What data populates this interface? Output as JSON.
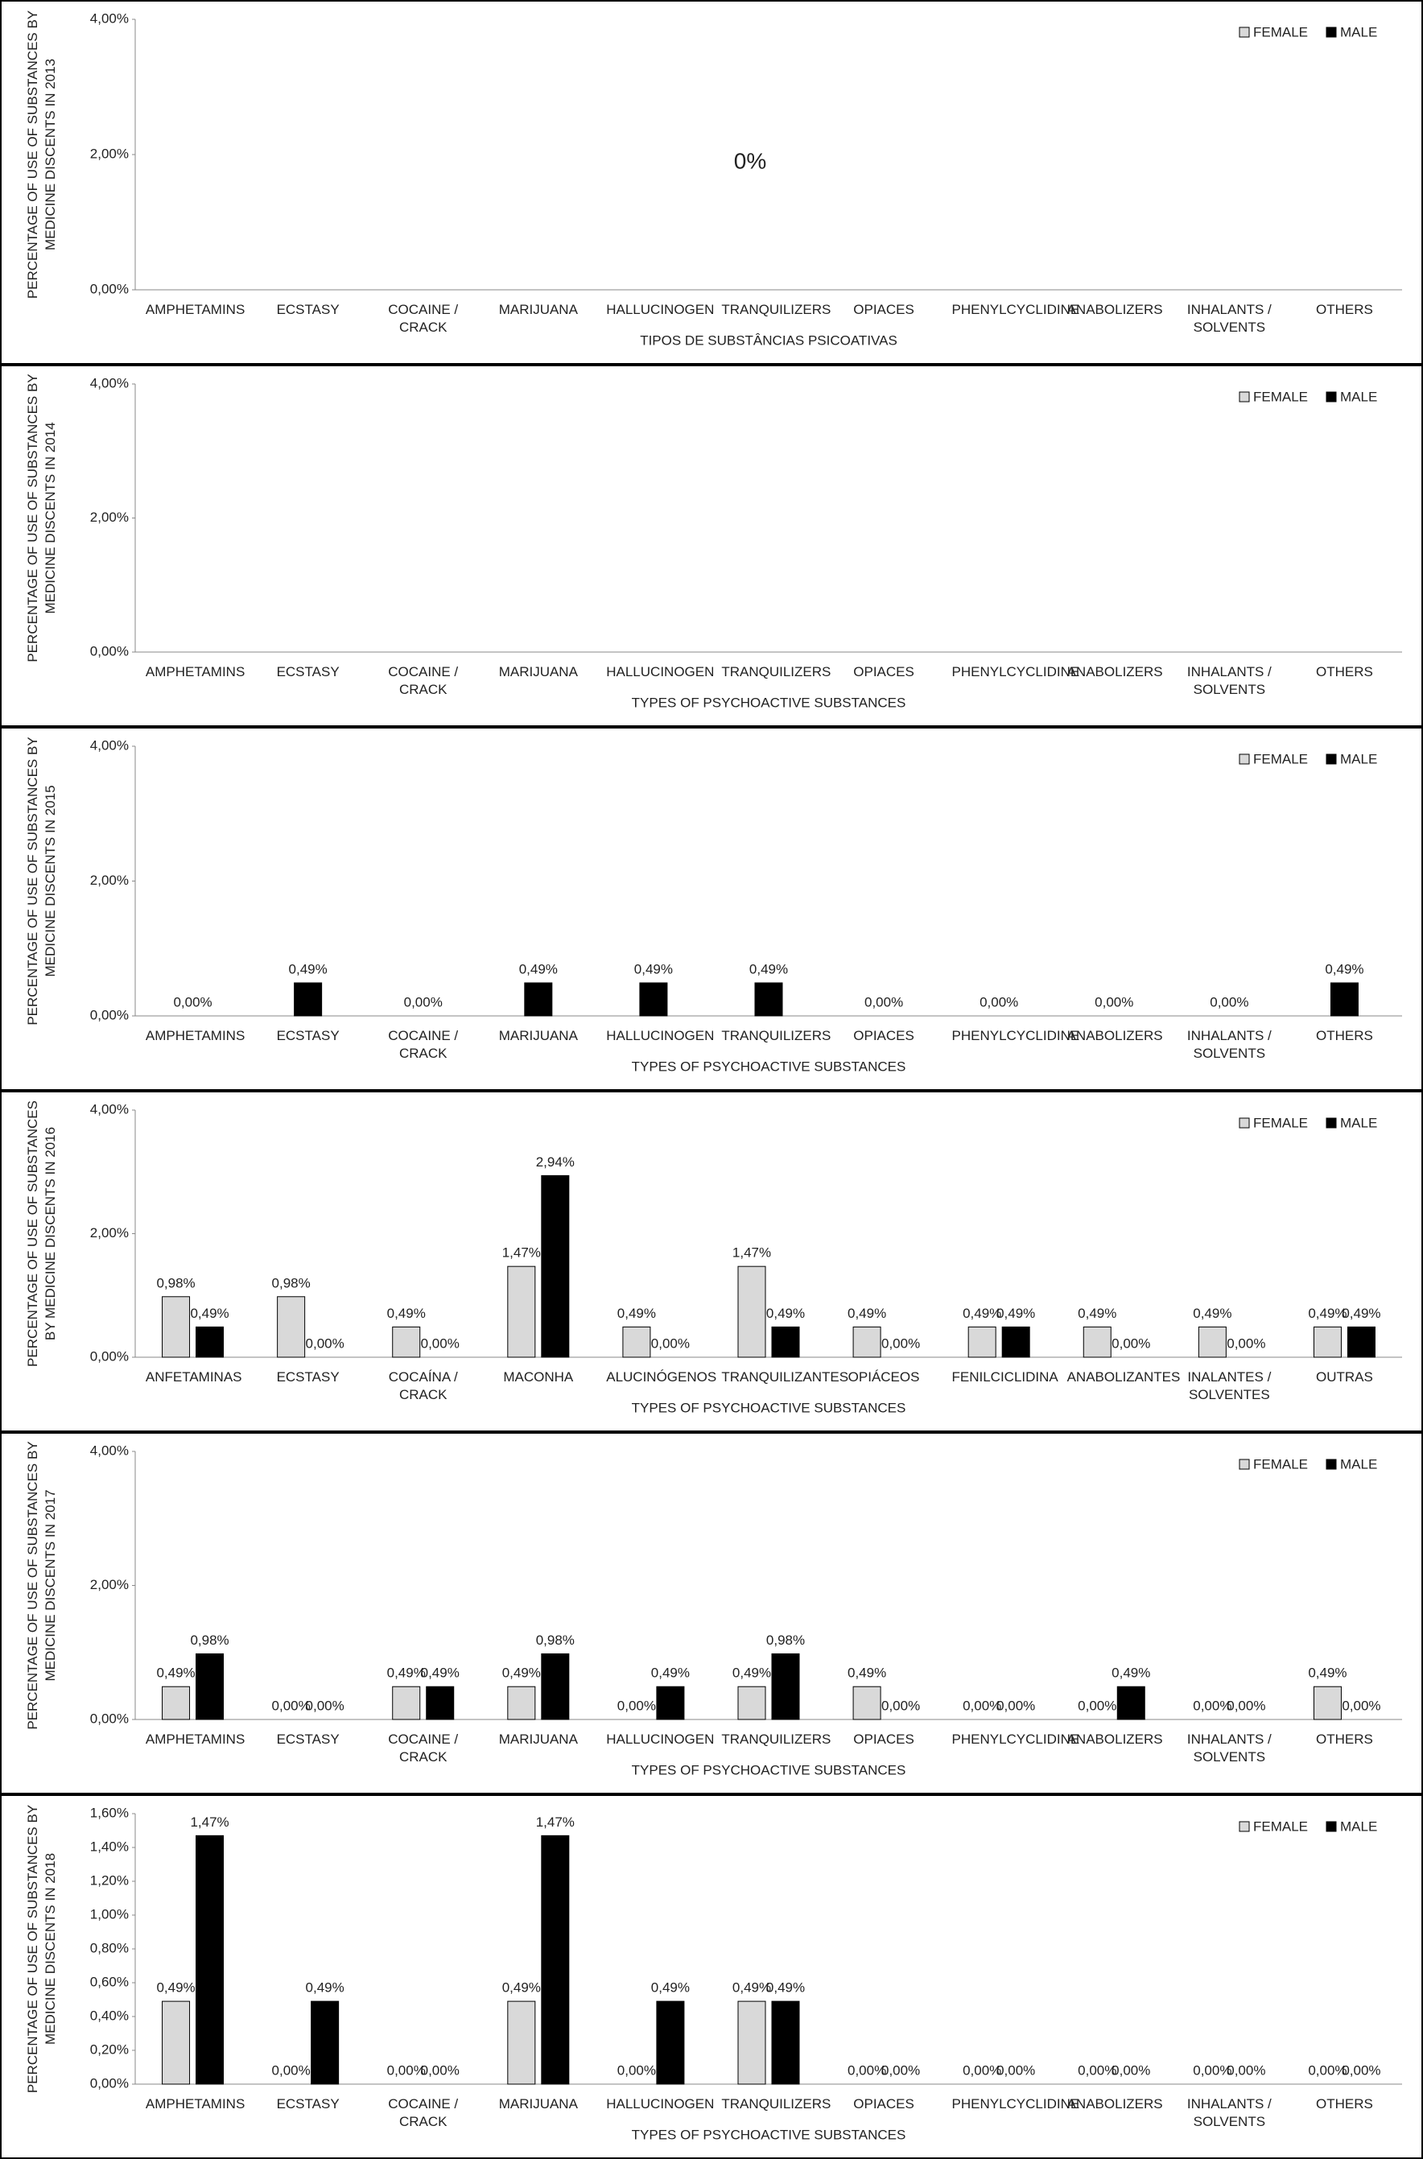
{
  "chart_data": [
    {
      "type": "bar",
      "ylabel": "PERCENTAGE OF USE OF SUBSTANCES BY MEDICINE DISCENTS IN 2013",
      "xlabel": "TIPOS DE SUBSTÂNCIAS PSICOATIVAS",
      "annotation": "0%",
      "categories": [
        "AMPHETAMINS",
        "ECSTASY",
        "COCAINE / CRACK",
        "MARIJUANA",
        "HALLUCINOGEN",
        "TRANQUILIZERS",
        "OPIACES",
        "PHENYLCYCLIDINE",
        "ANABOLIZERS",
        "INHALANTS / SOLVENTS",
        "OTHERS"
      ],
      "series": [
        {
          "name": "FEMALE",
          "color": "#d9d9d9",
          "values": [
            0,
            0,
            0,
            0,
            0,
            0,
            0,
            0,
            0,
            0,
            0
          ]
        },
        {
          "name": "MALE",
          "color": "#000000",
          "values": [
            0,
            0,
            0,
            0,
            0,
            0,
            0,
            0,
            0,
            0,
            0
          ]
        }
      ],
      "ylim": [
        0,
        4
      ],
      "yticks": [
        {
          "value": 0,
          "label": "0,00%"
        },
        {
          "value": 2,
          "label": "2,00%"
        },
        {
          "value": 4,
          "label": "4,00%"
        }
      ],
      "legend": "upper right"
    },
    {
      "type": "bar",
      "ylabel": "PERCENTAGE OF USE OF SUBSTANCES BY MEDICINE DISCENTS IN 2014",
      "xlabel": "TYPES OF PSYCHOACTIVE SUBSTANCES",
      "categories": [
        "AMPHETAMINS",
        "ECSTASY",
        "COCAINE / CRACK",
        "MARIJUANA",
        "HALLUCINOGEN",
        "TRANQUILIZERS",
        "OPIACES",
        "PHENYLCYCLIDINE",
        "ANABOLIZERS",
        "INHALANTS / SOLVENTS",
        "OTHERS"
      ],
      "series": [
        {
          "name": "FEMALE",
          "color": "#d9d9d9",
          "values": [
            0,
            0,
            0,
            0,
            0,
            0,
            0,
            0,
            0,
            0,
            0
          ]
        },
        {
          "name": "MALE",
          "color": "#000000",
          "values": [
            0,
            0,
            0,
            0,
            0,
            0,
            0,
            0,
            0,
            0,
            0
          ]
        }
      ],
      "ylim": [
        0,
        4
      ],
      "yticks": [
        {
          "value": 0,
          "label": "0,00%"
        },
        {
          "value": 2,
          "label": "2,00%"
        },
        {
          "value": 4,
          "label": "4,00%"
        }
      ],
      "legend": "upper right"
    },
    {
      "type": "bar",
      "ylabel": "PERCENTAGE OF USE OF SUBSTANCES BY MEDICINE DISCENTS IN 2015",
      "xlabel": "TYPES OF PSYCHOACTIVE SUBSTANCES",
      "categories": [
        "AMPHETAMINS",
        "ECSTASY",
        "COCAINE / CRACK",
        "MARIJUANA",
        "HALLUCINOGEN",
        "TRANQUILIZERS",
        "OPIACES",
        "PHENYLCYCLIDINE",
        "ANABOLIZERS",
        "INHALANTS / SOLVENTS",
        "OTHERS"
      ],
      "series": [
        {
          "name": "FEMALE",
          "color": "#d9d9d9",
          "values": [
            null,
            null,
            null,
            null,
            null,
            null,
            null,
            null,
            null,
            null,
            null
          ]
        },
        {
          "name": "MALE",
          "color": "#000000",
          "values": [
            0,
            0.49,
            0,
            0.49,
            0.49,
            0.49,
            0,
            0,
            0,
            0,
            0.49
          ],
          "value_labels": [
            "0,00%",
            "0,49%",
            "0,00%",
            "0,49%",
            "0,49%",
            "0,49%",
            "0,00%",
            "0,00%",
            "0,00%",
            "0,00%",
            "0,49%"
          ]
        }
      ],
      "ylim": [
        0,
        4
      ],
      "yticks": [
        {
          "value": 0,
          "label": "0,00%"
        },
        {
          "value": 2,
          "label": "2,00%"
        },
        {
          "value": 4,
          "label": "4,00%"
        }
      ],
      "legend": "upper right"
    },
    {
      "type": "bar",
      "ylabel": "PERCENTAGE OF USE OF SUBSTANCES BY MEDICINE DISCENTS IN 2016",
      "xlabel": "TYPES OF PSYCHOACTIVE SUBSTANCES",
      "categories": [
        "ANFETAMINAS",
        "ECSTASY",
        "COCAÍNA / CRACK",
        "MACONHA",
        "ALUCINÓGENOS",
        "TRANQUILIZANTES",
        "OPIÁCEOS",
        "FENILCICLIDINA",
        "ANABOLIZANTES",
        "INALANTES / SOLVENTES",
        "OUTRAS"
      ],
      "series": [
        {
          "name": "FEMALE",
          "color": "#d9d9d9",
          "values": [
            0.98,
            0.98,
            0.49,
            1.47,
            0.49,
            1.47,
            0.49,
            0.49,
            0.49,
            0.49,
            0.49
          ],
          "value_labels": [
            "0,98%",
            "0,98%",
            "0,49%",
            "1,47%",
            "0,49%",
            "1,47%",
            "0,49%",
            "0,49%",
            "0,49%",
            "0,49%",
            "0,49%"
          ]
        },
        {
          "name": "MALE",
          "color": "#000000",
          "values": [
            0.49,
            0,
            0,
            2.94,
            0,
            0.49,
            0,
            0.49,
            0,
            0,
            0.49
          ],
          "value_labels": [
            "0,49%",
            "0,00%",
            "0,00%",
            "2,94%",
            "0,00%",
            "0,49%",
            "0,00%",
            "0,49%",
            "0,00%",
            "0,00%",
            "0,49%"
          ]
        }
      ],
      "ylim": [
        0,
        4
      ],
      "yticks": [
        {
          "value": 0,
          "label": "0,00%"
        },
        {
          "value": 2,
          "label": "2,00%"
        },
        {
          "value": 4,
          "label": "4,00%"
        }
      ],
      "legend": "upper right"
    },
    {
      "type": "bar",
      "ylabel": "PERCENTAGE OF USE OF SUBSTANCES BY MEDICINE DISCENTS IN 2017",
      "xlabel": "TYPES OF PSYCHOACTIVE SUBSTANCES",
      "categories": [
        "AMPHETAMINS",
        "ECSTASY",
        "COCAINE / CRACK",
        "MARIJUANA",
        "HALLUCINOGEN",
        "TRANQUILIZERS",
        "OPIACES",
        "PHENYLCYCLIDINE",
        "ANABOLIZERS",
        "INHALANTS / SOLVENTS",
        "OTHERS"
      ],
      "series": [
        {
          "name": "FEMALE",
          "color": "#d9d9d9",
          "values": [
            0.49,
            0,
            0.49,
            0.49,
            0,
            0.49,
            0.49,
            0,
            0,
            0,
            0.49
          ],
          "value_labels": [
            "0,49%",
            "0,00%",
            "0,49%",
            "0,49%",
            "0,00%",
            "0,49%",
            "0,49%",
            "0,00%",
            "0,00%",
            "0,00%",
            "0,49%"
          ]
        },
        {
          "name": "MALE",
          "color": "#000000",
          "values": [
            0.98,
            0,
            0.49,
            0.98,
            0.49,
            0.98,
            0,
            0,
            0.49,
            0,
            0
          ],
          "value_labels": [
            "0,98%",
            "0,00%",
            "0,49%",
            "0,98%",
            "0,49%",
            "0,98%",
            "0,00%",
            "0,00%",
            "0,49%",
            "0,00%",
            "0,00%"
          ]
        }
      ],
      "ylim": [
        0,
        4
      ],
      "yticks": [
        {
          "value": 0,
          "label": "0,00%"
        },
        {
          "value": 2,
          "label": "2,00%"
        },
        {
          "value": 4,
          "label": "4,00%"
        }
      ],
      "legend": "upper right"
    },
    {
      "type": "bar",
      "ylabel": "PERCENTAGE OF USE OF SUBSTANCES BY MEDICINE DISCENTS IN 2018",
      "xlabel": "TYPES OF PSYCHOACTIVE SUBSTANCES",
      "categories": [
        "AMPHETAMINS",
        "ECSTASY",
        "COCAINE / CRACK",
        "MARIJUANA",
        "HALLUCINOGEN",
        "TRANQUILIZERS",
        "OPIACES",
        "PHENYLCYCLIDINE",
        "ANABOLIZERS",
        "INHALANTS / SOLVENTS",
        "OTHERS"
      ],
      "series": [
        {
          "name": "FEMALE",
          "color": "#d9d9d9",
          "values": [
            0.49,
            0,
            0,
            0.49,
            0,
            0.49,
            0,
            0,
            0,
            0,
            0
          ],
          "value_labels": [
            "0,49%",
            "0,00%",
            "0,00%",
            "0,49%",
            "0,00%",
            "0,49%",
            "0,00%",
            "0,00%",
            "0,00%",
            "0,00%",
            "0,00%"
          ]
        },
        {
          "name": "MALE",
          "color": "#000000",
          "values": [
            1.47,
            0.49,
            0,
            1.47,
            0.49,
            0.49,
            0,
            0,
            0,
            0,
            0
          ],
          "value_labels": [
            "1,47%",
            "0,49%",
            "0,00%",
            "1,47%",
            "0,49%",
            "0,49%",
            "0,00%",
            "0,00%",
            "0,00%",
            "0,00%",
            "0,00%"
          ]
        }
      ],
      "ylim": [
        0,
        1.6
      ],
      "yticks": [
        {
          "value": 0,
          "label": "0,00%"
        },
        {
          "value": 0.2,
          "label": "0,20%"
        },
        {
          "value": 0.4,
          "label": "0,40%"
        },
        {
          "value": 0.6,
          "label": "0,60%"
        },
        {
          "value": 0.8,
          "label": "0,80%"
        },
        {
          "value": 1,
          "label": "1,00%"
        },
        {
          "value": 1.2,
          "label": "1,20%"
        },
        {
          "value": 1.4,
          "label": "1,40%"
        },
        {
          "value": 1.6,
          "label": "1,60%"
        }
      ],
      "legend": "upper right"
    }
  ]
}
